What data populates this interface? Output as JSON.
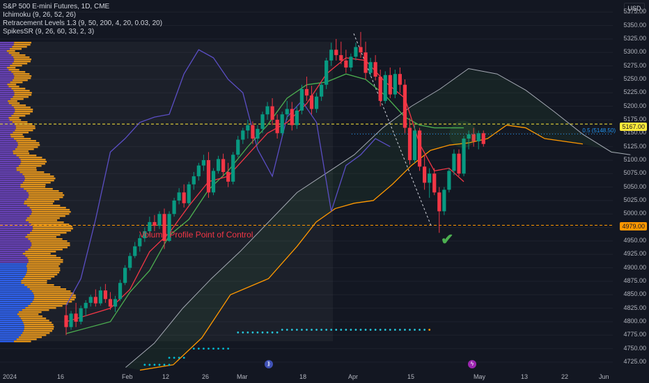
{
  "legend": {
    "symbol": "S&P 500 E-mini Futures, 1D, CME",
    "ichimoku": "Ichimoku (9, 26, 52, 26)",
    "retracement": "Retracement Levels 1.3 (9, 50, 200, 4, 20, 0.03, 20)",
    "spikes": "SpikesSR (9, 26, 60, 33, 2, 3)"
  },
  "currency": "USD",
  "price_tags": {
    "level_high": "5167.00",
    "level_poc": "4979.00"
  },
  "fib_label": "0.5 (5148.50)",
  "poc_text": "Volume Profile Point of Control",
  "yaxis": [
    "5375.00",
    "5350.00",
    "5325.00",
    "5300.00",
    "5275.00",
    "5250.00",
    "5225.00",
    "5200.00",
    "5175.00",
    "5150.00",
    "5125.00",
    "5100.00",
    "5075.00",
    "5050.00",
    "5025.00",
    "5000.00",
    "4975.00",
    "4950.00",
    "4925.00",
    "4900.00",
    "4875.00",
    "4850.00",
    "4825.00",
    "4800.00",
    "4775.00",
    "4750.00",
    "4725.00"
  ],
  "xaxis": [
    "2024",
    "16",
    "Feb",
    "12",
    "26",
    "Mar",
    "18",
    "Apr",
    "15",
    "May",
    "13",
    "22",
    "Jun"
  ],
  "events": {
    "icon1": "⟫",
    "icon2": "ϟ"
  },
  "colors": {
    "up": "#089981",
    "down": "#f23645",
    "tenkan": "#f23645",
    "kijun": "#4caf50",
    "lagging": "#5b4ec4",
    "cloud_bound": "#ff9800",
    "poc": "#ff9800"
  },
  "chart_data": {
    "type": "candlestick",
    "price_range": [
      4712,
      5387
    ],
    "candles": [
      {
        "o": 4812,
        "h": 4830,
        "l": 4775,
        "c": 4790
      },
      {
        "o": 4790,
        "h": 4820,
        "l": 4785,
        "c": 4815
      },
      {
        "o": 4815,
        "h": 4835,
        "l": 4790,
        "c": 4800
      },
      {
        "o": 4800,
        "h": 4830,
        "l": 4795,
        "c": 4825
      },
      {
        "o": 4825,
        "h": 4840,
        "l": 4810,
        "c": 4835
      },
      {
        "o": 4835,
        "h": 4850,
        "l": 4828,
        "c": 4846
      },
      {
        "o": 4846,
        "h": 4860,
        "l": 4828,
        "c": 4834
      },
      {
        "o": 4834,
        "h": 4865,
        "l": 4830,
        "c": 4858
      },
      {
        "o": 4858,
        "h": 4870,
        "l": 4835,
        "c": 4842
      },
      {
        "o": 4842,
        "h": 4855,
        "l": 4822,
        "c": 4828
      },
      {
        "o": 4828,
        "h": 4848,
        "l": 4818,
        "c": 4842
      },
      {
        "o": 4842,
        "h": 4878,
        "l": 4838,
        "c": 4872
      },
      {
        "o": 4872,
        "h": 4905,
        "l": 4868,
        "c": 4900
      },
      {
        "o": 4900,
        "h": 4928,
        "l": 4895,
        "c": 4922
      },
      {
        "o": 4922,
        "h": 4948,
        "l": 4918,
        "c": 4940
      },
      {
        "o": 4940,
        "h": 4962,
        "l": 4930,
        "c": 4955
      },
      {
        "o": 4955,
        "h": 4975,
        "l": 4948,
        "c": 4968
      },
      {
        "o": 4968,
        "h": 4995,
        "l": 4960,
        "c": 4985
      },
      {
        "o": 4985,
        "h": 4998,
        "l": 4968,
        "c": 4978
      },
      {
        "o": 4978,
        "h": 5005,
        "l": 4972,
        "c": 5000
      },
      {
        "o": 5000,
        "h": 5010,
        "l": 4935,
        "c": 4950
      },
      {
        "o": 4950,
        "h": 5005,
        "l": 4948,
        "c": 5000
      },
      {
        "o": 5000,
        "h": 5030,
        "l": 4995,
        "c": 5025
      },
      {
        "o": 5025,
        "h": 5048,
        "l": 5018,
        "c": 5040
      },
      {
        "o": 5040,
        "h": 5055,
        "l": 5012,
        "c": 5020
      },
      {
        "o": 5020,
        "h": 5060,
        "l": 5015,
        "c": 5055
      },
      {
        "o": 5055,
        "h": 5078,
        "l": 5045,
        "c": 5070
      },
      {
        "o": 5070,
        "h": 5095,
        "l": 5062,
        "c": 5090
      },
      {
        "o": 5090,
        "h": 5110,
        "l": 5080,
        "c": 5100
      },
      {
        "o": 5100,
        "h": 5115,
        "l": 5030,
        "c": 5040
      },
      {
        "o": 5040,
        "h": 5085,
        "l": 5035,
        "c": 5080
      },
      {
        "o": 5080,
        "h": 5108,
        "l": 5075,
        "c": 5102
      },
      {
        "o": 5102,
        "h": 5112,
        "l": 5070,
        "c": 5078
      },
      {
        "o": 5078,
        "h": 5095,
        "l": 5050,
        "c": 5060
      },
      {
        "o": 5060,
        "h": 5115,
        "l": 5055,
        "c": 5110
      },
      {
        "o": 5110,
        "h": 5145,
        "l": 5105,
        "c": 5138
      },
      {
        "o": 5138,
        "h": 5160,
        "l": 5130,
        "c": 5155
      },
      {
        "o": 5155,
        "h": 5175,
        "l": 5140,
        "c": 5165
      },
      {
        "o": 5165,
        "h": 5172,
        "l": 5130,
        "c": 5140
      },
      {
        "o": 5140,
        "h": 5165,
        "l": 5128,
        "c": 5158
      },
      {
        "o": 5158,
        "h": 5190,
        "l": 5150,
        "c": 5185
      },
      {
        "o": 5185,
        "h": 5208,
        "l": 5175,
        "c": 5200
      },
      {
        "o": 5200,
        "h": 5215,
        "l": 5165,
        "c": 5175
      },
      {
        "o": 5175,
        "h": 5185,
        "l": 5140,
        "c": 5150
      },
      {
        "o": 5150,
        "h": 5190,
        "l": 5145,
        "c": 5185
      },
      {
        "o": 5185,
        "h": 5210,
        "l": 5175,
        "c": 5195
      },
      {
        "o": 5195,
        "h": 5208,
        "l": 5155,
        "c": 5165
      },
      {
        "o": 5165,
        "h": 5200,
        "l": 5158,
        "c": 5192
      },
      {
        "o": 5192,
        "h": 5240,
        "l": 5185,
        "c": 5232
      },
      {
        "o": 5232,
        "h": 5255,
        "l": 5210,
        "c": 5220
      },
      {
        "o": 5220,
        "h": 5238,
        "l": 5185,
        "c": 5195
      },
      {
        "o": 5195,
        "h": 5225,
        "l": 5188,
        "c": 5218
      },
      {
        "o": 5218,
        "h": 5245,
        "l": 5210,
        "c": 5240
      },
      {
        "o": 5240,
        "h": 5290,
        "l": 5232,
        "c": 5285
      },
      {
        "o": 5285,
        "h": 5318,
        "l": 5275,
        "c": 5305
      },
      {
        "o": 5305,
        "h": 5325,
        "l": 5285,
        "c": 5295
      },
      {
        "o": 5295,
        "h": 5320,
        "l": 5278,
        "c": 5285
      },
      {
        "o": 5285,
        "h": 5305,
        "l": 5262,
        "c": 5272
      },
      {
        "o": 5272,
        "h": 5298,
        "l": 5265,
        "c": 5292
      },
      {
        "o": 5292,
        "h": 5318,
        "l": 5285,
        "c": 5310
      },
      {
        "o": 5310,
        "h": 5338,
        "l": 5290,
        "c": 5300
      },
      {
        "o": 5300,
        "h": 5320,
        "l": 5250,
        "c": 5262
      },
      {
        "o": 5262,
        "h": 5290,
        "l": 5255,
        "c": 5282
      },
      {
        "o": 5282,
        "h": 5295,
        "l": 5248,
        "c": 5255
      },
      {
        "o": 5255,
        "h": 5268,
        "l": 5200,
        "c": 5210
      },
      {
        "o": 5210,
        "h": 5265,
        "l": 5205,
        "c": 5258
      },
      {
        "o": 5258,
        "h": 5272,
        "l": 5215,
        "c": 5222
      },
      {
        "o": 5222,
        "h": 5268,
        "l": 5215,
        "c": 5260
      },
      {
        "o": 5260,
        "h": 5272,
        "l": 5225,
        "c": 5240
      },
      {
        "o": 5240,
        "h": 5250,
        "l": 5150,
        "c": 5160
      },
      {
        "o": 5160,
        "h": 5178,
        "l": 5092,
        "c": 5100
      },
      {
        "o": 5100,
        "h": 5165,
        "l": 5095,
        "c": 5155
      },
      {
        "o": 5155,
        "h": 5160,
        "l": 5080,
        "c": 5088
      },
      {
        "o": 5088,
        "h": 5110,
        "l": 5045,
        "c": 5058
      },
      {
        "o": 5058,
        "h": 5085,
        "l": 5030,
        "c": 5075
      },
      {
        "o": 5075,
        "h": 5085,
        "l": 5035,
        "c": 5040
      },
      {
        "o": 5040,
        "h": 5050,
        "l": 4965,
        "c": 5005
      },
      {
        "o": 5005,
        "h": 5050,
        "l": 4998,
        "c": 5045
      },
      {
        "o": 5045,
        "h": 5085,
        "l": 5040,
        "c": 5080
      },
      {
        "o": 5080,
        "h": 5120,
        "l": 5072,
        "c": 5112
      },
      {
        "o": 5112,
        "h": 5120,
        "l": 5070,
        "c": 5075
      },
      {
        "o": 5075,
        "h": 5145,
        "l": 5070,
        "c": 5140
      },
      {
        "o": 5140,
        "h": 5155,
        "l": 5120,
        "c": 5148
      },
      {
        "o": 5148,
        "h": 5160,
        "l": 5125,
        "c": 5135
      },
      {
        "o": 5135,
        "h": 5155,
        "l": 5120,
        "c": 5150
      },
      {
        "o": 5150,
        "h": 5155,
        "l": 5125,
        "c": 5130
      }
    ],
    "horizontal_levels": [
      {
        "price": 5167,
        "color": "#ffeb3b",
        "style": "dashed"
      },
      {
        "price": 4979,
        "color": "#ff9800",
        "style": "dashed"
      },
      {
        "price": 5148.5,
        "color": "#2196f3",
        "style": "dotted"
      }
    ],
    "tenkan": [
      [
        0,
        4800
      ],
      [
        9,
        4825
      ],
      [
        13,
        4860
      ],
      [
        17,
        4930
      ],
      [
        21,
        4965
      ],
      [
        25,
        5015
      ],
      [
        29,
        5060
      ],
      [
        33,
        5070
      ],
      [
        37,
        5110
      ],
      [
        41,
        5150
      ],
      [
        45,
        5170
      ],
      [
        49,
        5205
      ],
      [
        53,
        5260
      ],
      [
        57,
        5290
      ],
      [
        61,
        5285
      ],
      [
        65,
        5245
      ],
      [
        69,
        5215
      ],
      [
        72,
        5130
      ],
      [
        75,
        5080
      ],
      [
        78,
        5085
      ],
      [
        81,
        5060
      ]
    ],
    "kijun": [
      [
        0,
        4778
      ],
      [
        9,
        4800
      ],
      [
        13,
        4855
      ],
      [
        17,
        4895
      ],
      [
        21,
        4960
      ],
      [
        25,
        4990
      ],
      [
        29,
        5045
      ],
      [
        33,
        5080
      ],
      [
        37,
        5125
      ],
      [
        41,
        5165
      ],
      [
        45,
        5215
      ],
      [
        49,
        5240
      ],
      [
        53,
        5245
      ],
      [
        57,
        5260
      ],
      [
        61,
        5250
      ],
      [
        65,
        5220
      ],
      [
        69,
        5180
      ],
      [
        72,
        5165
      ],
      [
        75,
        5160
      ],
      [
        78,
        5160
      ],
      [
        81,
        5160
      ]
    ],
    "lagging": [
      [
        0,
        4830
      ],
      [
        3,
        4880
      ],
      [
        6,
        4990
      ],
      [
        9,
        5115
      ],
      [
        12,
        5140
      ],
      [
        15,
        5170
      ],
      [
        18,
        5180
      ],
      [
        21,
        5185
      ],
      [
        24,
        5260
      ],
      [
        27,
        5305
      ],
      [
        30,
        5290
      ],
      [
        33,
        5250
      ],
      [
        36,
        5225
      ],
      [
        39,
        5120
      ],
      [
        42,
        5070
      ],
      [
        45,
        5180
      ],
      [
        48,
        5210
      ],
      [
        51,
        5170
      ],
      [
        54,
        5005
      ],
      [
        57,
        5090
      ],
      [
        60,
        5110
      ],
      [
        63,
        5140
      ],
      [
        66,
        5125
      ]
    ],
    "cloud_a": [
      [
        22,
        4715
      ],
      [
        28,
        4760
      ],
      [
        34,
        4825
      ],
      [
        40,
        4880
      ],
      [
        46,
        4930
      ],
      [
        52,
        4985
      ],
      [
        58,
        5040
      ],
      [
        64,
        5075
      ],
      [
        70,
        5110
      ],
      [
        76,
        5160
      ],
      [
        82,
        5200
      ],
      [
        88,
        5232
      ],
      [
        94,
        5270
      ],
      [
        100,
        5260
      ],
      [
        106,
        5230
      ],
      [
        112,
        5190
      ],
      [
        118,
        5148
      ],
      [
        124,
        5115
      ],
      [
        128,
        5110
      ]
    ],
    "cloud_b": [
      [
        25,
        4710
      ],
      [
        32,
        4720
      ],
      [
        38,
        4770
      ],
      [
        44,
        4850
      ],
      [
        52,
        4880
      ],
      [
        58,
        4940
      ],
      [
        62,
        4985
      ],
      [
        66,
        5010
      ],
      [
        70,
        5020
      ],
      [
        74,
        5025
      ],
      [
        78,
        5055
      ],
      [
        82,
        5090
      ],
      [
        86,
        5118
      ],
      [
        90,
        5128
      ],
      [
        94,
        5132
      ],
      [
        98,
        5140
      ],
      [
        102,
        5165
      ],
      [
        106,
        5160
      ],
      [
        110,
        5140
      ],
      [
        118,
        5130
      ]
    ],
    "spikes": [
      {
        "price": 4780,
        "from": 62,
        "to": 70
      },
      {
        "price": 4785,
        "from": 71,
        "to": 101
      },
      {
        "price": 4750,
        "from": 53,
        "to": 60
      },
      {
        "price": 4733,
        "from": 48,
        "to": 51
      },
      {
        "price": 4720,
        "from": 43,
        "to": 48
      }
    ]
  }
}
